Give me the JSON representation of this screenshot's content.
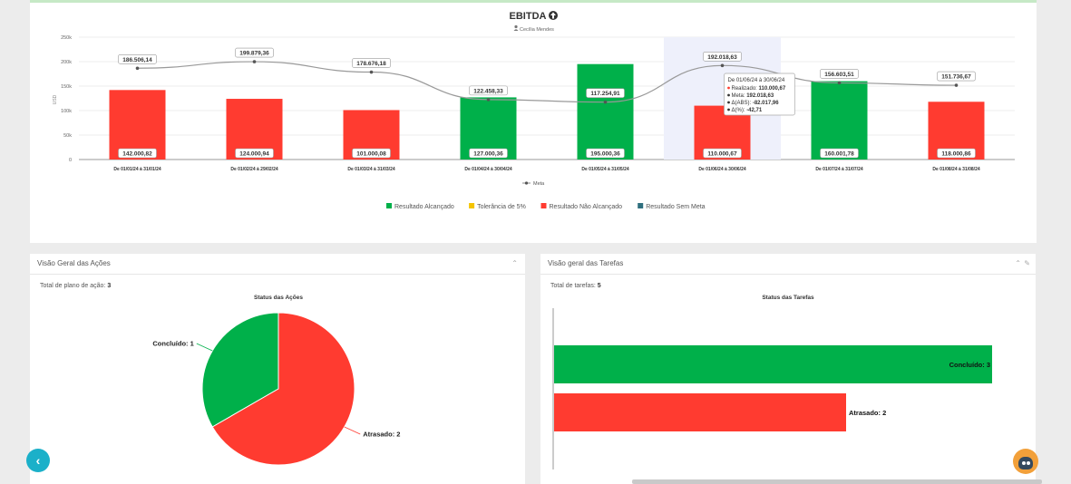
{
  "chart_data": [
    {
      "type": "bar",
      "title": "EBITDA",
      "title_icon": "arrow-up-circle-icon",
      "subtitle": "Cecília Mendes",
      "subtitle_icon": "user-icon",
      "ylabel": "USD",
      "ylim": [
        0,
        250000
      ],
      "yticks": [
        "0",
        "50k",
        "100k",
        "150k",
        "200k",
        "250k"
      ],
      "categories": [
        "De 01/01/24 à 31/01/24",
        "De 01/02/24 à 29/02/24",
        "De 01/03/24 à 31/03/24",
        "De 01/04/24 à 30/04/24",
        "De 01/05/24 à 31/05/24",
        "De 01/06/24 à 30/06/24",
        "De 01/07/24 à 31/07/24",
        "De 01/08/24 à 31/08/24"
      ],
      "bars": {
        "values": [
          142000.82,
          124000.94,
          101000.08,
          127000.36,
          195000.36,
          110000.67,
          160001.78,
          118000.86
        ],
        "labels": [
          "142.000,82",
          "124.000,94",
          "101.000,08",
          "127.000,36",
          "195.000,36",
          "110.000,67",
          "160.001,78",
          "118.000,86"
        ],
        "status": [
          "nao",
          "nao",
          "nao",
          "alc",
          "alc",
          "nao",
          "alc",
          "nao"
        ]
      },
      "meta_series": {
        "name": "Meta",
        "values": [
          186506.14,
          199879.36,
          178676.18,
          122458.33,
          117254.91,
          192018.63,
          156603.51,
          151736.67
        ],
        "labels": [
          "186.506,14",
          "199.879,36",
          "178.676,18",
          "122.458,33",
          "117.254,91",
          "192.018,63",
          "156.603,51",
          "151.736,67"
        ]
      },
      "legend_bottom": [
        {
          "label": "Resultado Alcançado",
          "color": "#00b04a"
        },
        {
          "label": "Tolerância de 5%",
          "color": "#f5c400"
        },
        {
          "label": "Resultado Não Alcançado",
          "color": "#ff3b30"
        },
        {
          "label": "Resultado Sem Meta",
          "color": "#2f6f7e"
        }
      ],
      "colors": {
        "alc": "#00b04a",
        "nao": "#ff3b30",
        "line": "#999999",
        "highlight": "#eef0fb"
      },
      "highlight_index": 5,
      "tooltip": {
        "title": "De 01/06/24 à 30/06/24",
        "rows": [
          {
            "label": "Realizado: ",
            "value": "110.000,67",
            "color": "#ff3b30"
          },
          {
            "label": "Meta: ",
            "value": "192.018,63",
            "color": "#333333"
          },
          {
            "label": "Δ(ABS): ",
            "value": "-82.017,96",
            "color": "#333333"
          },
          {
            "label": "Δ(%): ",
            "value": "-42,71",
            "color": "#333333"
          }
        ]
      }
    },
    {
      "type": "pie",
      "title": "Status das Ações",
      "slices": [
        {
          "label": "Concluído: 1",
          "value": 1,
          "color": "#00b04a"
        },
        {
          "label": "Atrasado: 2",
          "value": 2,
          "color": "#ff3b30"
        }
      ]
    },
    {
      "type": "bar",
      "orientation": "horizontal",
      "title": "Status das Tarefas",
      "xlim": [
        0,
        3
      ],
      "bars": [
        {
          "label": "Concluído: 3",
          "value": 3,
          "color": "#00b04a"
        },
        {
          "label": "Atrasado: 2",
          "value": 2,
          "color": "#ff3b30"
        }
      ]
    }
  ],
  "cards": {
    "acoes": {
      "title": "Visão Geral das Ações",
      "total_label": "Total de plano de ação: ",
      "total_value": "3",
      "ctrl_icon": "chevron-up-icon"
    },
    "tarefas": {
      "title": "Visão geral das Tarefas",
      "total_label": "Total de tarefas: ",
      "total_value": "5",
      "ctrl_icons": [
        "chevron-up-icon",
        "pencil-icon"
      ]
    }
  },
  "nav": {
    "prev_icon": "chevron-left-icon",
    "prev_glyph": "‹"
  },
  "assistant_icon": "assistant-bot-icon"
}
